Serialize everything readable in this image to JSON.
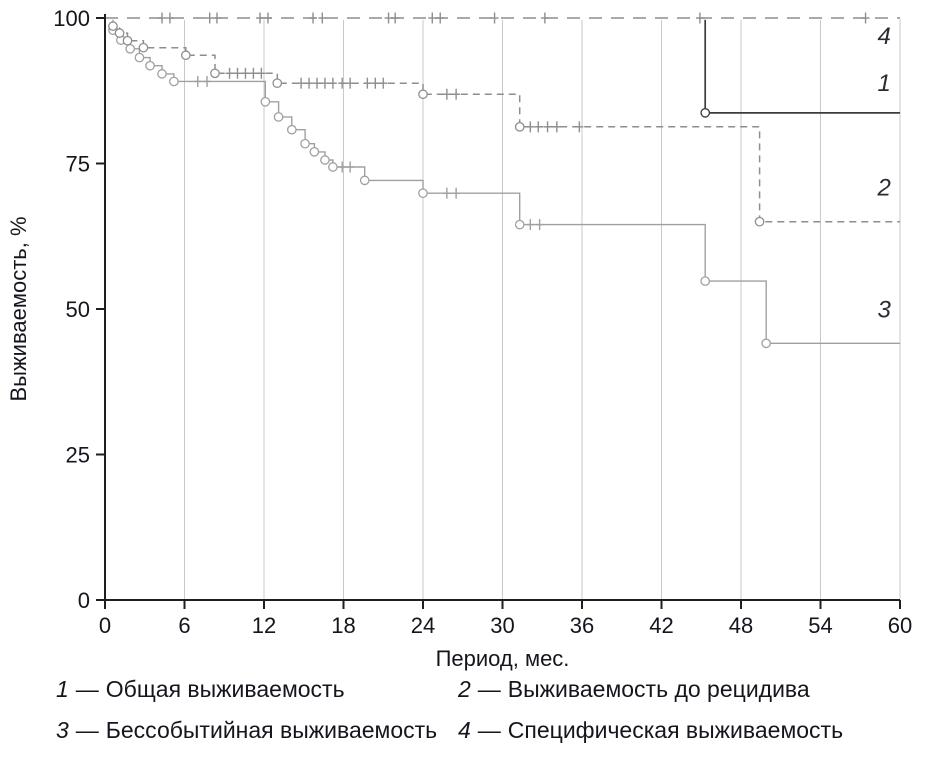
{
  "chart_data": {
    "type": "line",
    "subtype": "kaplan-meier-step",
    "title": "",
    "xlabel": "Период, мес.",
    "ylabel": "Выживаемость, %",
    "xlim": [
      0,
      60
    ],
    "ylim": [
      0,
      100
    ],
    "x_ticks": [
      0,
      6,
      12,
      18,
      24,
      30,
      36,
      42,
      48,
      54,
      60
    ],
    "y_ticks": [
      0,
      25,
      50,
      75,
      100
    ],
    "grid": "vertical-light",
    "grid_color": "#c9c9c9",
    "axis_color": "#1f1f1f",
    "legend_position": "below",
    "legend_sep": "—",
    "legend": [
      {
        "num": "1",
        "text": "Общая выживаемость"
      },
      {
        "num": "2",
        "text": "Выживаемость до рецидива"
      },
      {
        "num": "3",
        "text": "Бессобытийная выживаемость"
      },
      {
        "num": "4",
        "text": "Специфическая выживаемость"
      }
    ],
    "series": [
      {
        "label": "3",
        "name": "Бессобытийная выживаемость",
        "style": "solid",
        "color": "#a0a0a0",
        "width": 1.4,
        "steps": [
          [
            0,
            100
          ],
          [
            0.6,
            100
          ],
          [
            0.6,
            97.9
          ],
          [
            1.2,
            97.9
          ],
          [
            1.2,
            96.2
          ],
          [
            1.9,
            96.2
          ],
          [
            1.9,
            94.7
          ],
          [
            2.6,
            94.7
          ],
          [
            2.6,
            93.2
          ],
          [
            3.4,
            93.2
          ],
          [
            3.4,
            91.8
          ],
          [
            4.3,
            91.8
          ],
          [
            4.3,
            90.4
          ],
          [
            5.2,
            90.4
          ],
          [
            5.2,
            89.1
          ],
          [
            12.1,
            89.1
          ],
          [
            12.1,
            85.6
          ],
          [
            13.1,
            85.6
          ],
          [
            13.1,
            83.0
          ],
          [
            14.1,
            83.0
          ],
          [
            14.1,
            80.8
          ],
          [
            15.1,
            80.8
          ],
          [
            15.1,
            78.4
          ],
          [
            15.8,
            78.4
          ],
          [
            15.8,
            77.0
          ],
          [
            16.6,
            77.0
          ],
          [
            16.6,
            75.6
          ],
          [
            17.2,
            75.6
          ],
          [
            17.2,
            74.4
          ],
          [
            19.6,
            74.4
          ],
          [
            19.6,
            72.1
          ],
          [
            24,
            72.1
          ],
          [
            24,
            69.9
          ],
          [
            31.3,
            69.9
          ],
          [
            31.3,
            64.5
          ],
          [
            45.3,
            64.5
          ],
          [
            45.3,
            54.8
          ],
          [
            49.9,
            54.8
          ],
          [
            49.9,
            44.1
          ],
          [
            60,
            44.1
          ]
        ],
        "events": [
          [
            0.6,
            97.9
          ],
          [
            1.2,
            96.2
          ],
          [
            1.9,
            94.7
          ],
          [
            2.6,
            93.2
          ],
          [
            3.4,
            91.8
          ],
          [
            4.3,
            90.4
          ],
          [
            5.2,
            89.1
          ],
          [
            12.1,
            85.6
          ],
          [
            13.1,
            83.0
          ],
          [
            14.1,
            80.8
          ],
          [
            15.1,
            78.4
          ],
          [
            15.8,
            77.0
          ],
          [
            16.6,
            75.6
          ],
          [
            17.2,
            74.4
          ],
          [
            19.6,
            72.1
          ],
          [
            24,
            69.9
          ],
          [
            31.3,
            64.5
          ],
          [
            45.3,
            54.8
          ],
          [
            49.9,
            44.1
          ]
        ],
        "censors": [
          [
            7.0,
            89.1
          ],
          [
            7.7,
            89.1
          ],
          [
            17.9,
            74.4
          ],
          [
            18.5,
            74.4
          ],
          [
            25.8,
            69.9
          ],
          [
            26.5,
            69.9
          ],
          [
            32.1,
            64.5
          ],
          [
            32.8,
            64.5
          ]
        ],
        "end_label": [
          58.3,
          48.5
        ]
      },
      {
        "label": "2",
        "name": "Выживаемость до рецидива",
        "style": "dashed",
        "color": "#8e8e8e",
        "width": 1.5,
        "steps": [
          [
            0,
            100
          ],
          [
            0.6,
            100
          ],
          [
            0.6,
            98.6
          ],
          [
            1.1,
            98.6
          ],
          [
            1.1,
            97.4
          ],
          [
            1.7,
            97.4
          ],
          [
            1.7,
            96.1
          ],
          [
            2.9,
            96.1
          ],
          [
            2.9,
            94.9
          ],
          [
            6.1,
            94.9
          ],
          [
            6.1,
            93.6
          ],
          [
            8.3,
            93.6
          ],
          [
            8.3,
            90.5
          ],
          [
            13.0,
            90.5
          ],
          [
            13.0,
            88.8
          ],
          [
            24,
            88.8
          ],
          [
            24,
            86.9
          ],
          [
            31.3,
            86.9
          ],
          [
            31.3,
            81.3
          ],
          [
            49.4,
            81.3
          ],
          [
            49.4,
            65.0
          ],
          [
            60,
            65.0
          ]
        ],
        "events": [
          [
            0.6,
            98.6
          ],
          [
            1.1,
            97.4
          ],
          [
            1.7,
            96.1
          ],
          [
            2.9,
            94.9
          ],
          [
            6.1,
            93.6
          ],
          [
            8.3,
            90.5
          ],
          [
            13.0,
            88.8
          ],
          [
            24,
            86.9
          ],
          [
            31.3,
            81.3
          ],
          [
            49.4,
            65.0
          ]
        ],
        "censors": [
          [
            9.4,
            90.5
          ],
          [
            10.0,
            90.5
          ],
          [
            10.6,
            90.5
          ],
          [
            11.2,
            90.5
          ],
          [
            11.8,
            90.5
          ],
          [
            14.8,
            88.8
          ],
          [
            15.4,
            88.8
          ],
          [
            16.0,
            88.8
          ],
          [
            16.6,
            88.8
          ],
          [
            17.2,
            88.8
          ],
          [
            17.9,
            88.8
          ],
          [
            18.5,
            88.8
          ],
          [
            19.8,
            88.8
          ],
          [
            20.4,
            88.8
          ],
          [
            21.0,
            88.8
          ],
          [
            25.8,
            86.9
          ],
          [
            26.5,
            86.9
          ],
          [
            32.1,
            81.3
          ],
          [
            32.7,
            81.3
          ],
          [
            33.4,
            81.3
          ],
          [
            34.1,
            81.3
          ],
          [
            35.8,
            81.3
          ]
        ],
        "end_label": [
          58.3,
          69.5
        ]
      },
      {
        "label": "1",
        "name": "Общая выживаемость",
        "style": "solid",
        "color": "#3c3c3c",
        "width": 1.7,
        "steps": [
          [
            0,
            100
          ],
          [
            45.3,
            100
          ],
          [
            45.3,
            83.7
          ],
          [
            60,
            83.7
          ]
        ],
        "events": [
          [
            45.3,
            83.7
          ]
        ],
        "censors": [],
        "end_label": [
          58.3,
          87.5
        ]
      },
      {
        "label": "4",
        "name": "Специфическая выживаемость",
        "style": "longdash",
        "color": "#8e8e8e",
        "width": 1.5,
        "casing": true,
        "steps": [
          [
            0,
            100
          ],
          [
            60,
            100
          ]
        ],
        "events": [],
        "censors": [
          [
            4.3,
            100
          ],
          [
            4.9,
            100
          ],
          [
            7.9,
            100
          ],
          [
            8.45,
            100
          ],
          [
            11.7,
            100
          ],
          [
            12.3,
            100
          ],
          [
            15.7,
            100
          ],
          [
            16.4,
            100
          ],
          [
            21.4,
            100
          ],
          [
            21.9,
            100
          ],
          [
            24.7,
            100
          ],
          [
            25.3,
            100
          ],
          [
            29.4,
            100
          ],
          [
            33.2,
            100
          ],
          [
            44.9,
            100
          ],
          [
            57.4,
            100
          ]
        ],
        "end_label": [
          58.3,
          95.5
        ]
      }
    ]
  }
}
